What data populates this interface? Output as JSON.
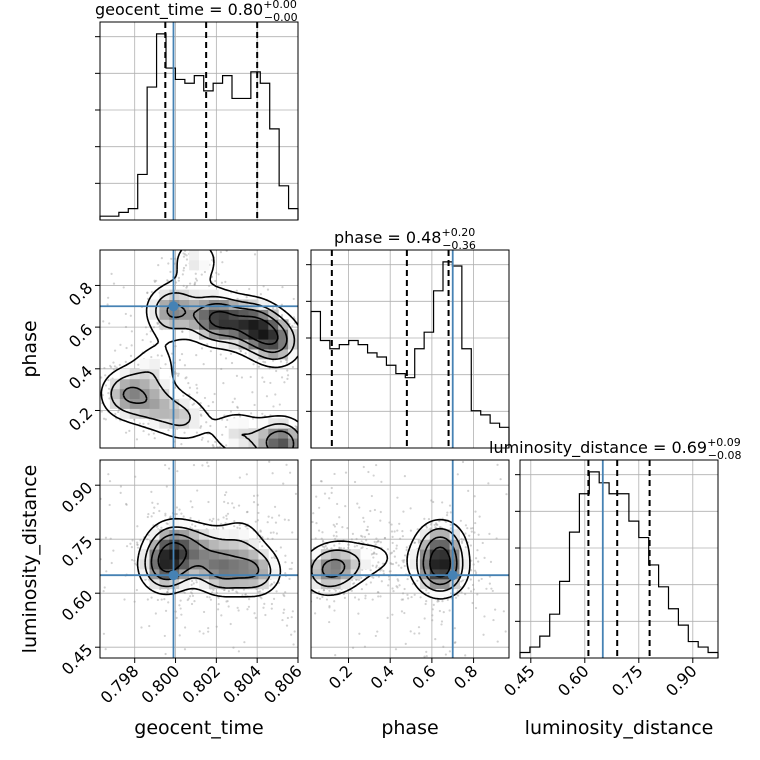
{
  "chart_data": {
    "type": "corner",
    "parameters": [
      {
        "name": "geocent_time",
        "label": "geocent_time",
        "range": [
          0.7963,
          0.806
        ],
        "ticks": [
          0.798,
          0.8,
          0.802,
          0.804,
          0.806
        ],
        "tick_labels": [
          "0.798",
          "0.800",
          "0.802",
          "0.804",
          "0.806"
        ],
        "truth": 0.7999,
        "quantiles": [
          0.7995,
          0.8015,
          0.804
        ],
        "summary": {
          "base": "geocent_time = 0.80",
          "plus": "+0.00",
          "minus": "−0.00"
        },
        "hist": [
          1,
          1,
          2,
          3,
          12,
          35,
          49,
          40,
          37,
          36,
          38,
          34,
          36,
          38,
          32,
          32,
          39,
          36,
          24,
          9,
          3
        ]
      },
      {
        "name": "phase",
        "label": "phase",
        "range": [
          0.02,
          0.97
        ],
        "ticks": [
          0.2,
          0.4,
          0.6,
          0.8
        ],
        "tick_labels": [
          "0.2",
          "0.4",
          "0.6",
          "0.8"
        ],
        "truth": 0.7,
        "quantiles": [
          0.12,
          0.48,
          0.68
        ],
        "summary": {
          "base": "phase = 0.48",
          "plus": "+0.20",
          "minus": "−0.36"
        },
        "hist": [
          33,
          26,
          24,
          25,
          26,
          25,
          23,
          22,
          20,
          18,
          17,
          24,
          28,
          38,
          45,
          44,
          24,
          9,
          8,
          6,
          5
        ]
      },
      {
        "name": "luminosity_distance",
        "label": "luminosity_distance",
        "range": [
          0.42,
          0.97
        ],
        "ticks": [
          0.45,
          0.6,
          0.75,
          0.9
        ],
        "tick_labels": [
          "0.45",
          "0.60",
          "0.75",
          "0.90"
        ],
        "truth": 0.65,
        "quantiles": [
          0.61,
          0.69,
          0.78
        ],
        "summary": {
          "base": "luminosity_distance = 0.69",
          "plus": "+0.09",
          "minus": "−0.08"
        },
        "hist": [
          1,
          2,
          4,
          8,
          14,
          23,
          30,
          34,
          32,
          30,
          30,
          25,
          22,
          17,
          13,
          9,
          6,
          3,
          2,
          1
        ]
      }
    ],
    "pairs": [
      {
        "x": "geocent_time",
        "y": "phase",
        "density_peaks": [
          {
            "x": 0.7975,
            "y": 0.28,
            "weight": 0.7
          },
          {
            "x": 0.799,
            "y": 0.22,
            "weight": 0.5
          },
          {
            "x": 0.8005,
            "y": 0.16,
            "weight": 0.5
          },
          {
            "x": 0.803,
            "y": 0.09,
            "weight": 0.5
          },
          {
            "x": 0.8052,
            "y": 0.04,
            "weight": 1.0
          },
          {
            "x": 0.799,
            "y": 0.42,
            "weight": 0.4
          },
          {
            "x": 0.7998,
            "y": 0.68,
            "weight": 0.8
          },
          {
            "x": 0.802,
            "y": 0.64,
            "weight": 1.0
          },
          {
            "x": 0.8038,
            "y": 0.61,
            "weight": 0.9
          },
          {
            "x": 0.805,
            "y": 0.53,
            "weight": 0.8
          },
          {
            "x": 0.801,
            "y": 0.92,
            "weight": 0.5
          }
        ]
      },
      {
        "x": "geocent_time",
        "y": "luminosity_distance",
        "density_peaks": [
          {
            "x": 0.7995,
            "y": 0.67,
            "weight": 1.0
          },
          {
            "x": 0.7998,
            "y": 0.74,
            "weight": 0.7
          },
          {
            "x": 0.8022,
            "y": 0.66,
            "weight": 0.8
          },
          {
            "x": 0.804,
            "y": 0.66,
            "weight": 0.8
          },
          {
            "x": 0.8012,
            "y": 0.73,
            "weight": 0.5
          },
          {
            "x": 0.8032,
            "y": 0.76,
            "weight": 0.4
          }
        ]
      },
      {
        "x": "phase",
        "y": "luminosity_distance",
        "density_peaks": [
          {
            "x": 0.64,
            "y": 0.66,
            "weight": 1.0
          },
          {
            "x": 0.64,
            "y": 0.74,
            "weight": 0.7
          },
          {
            "x": 0.08,
            "y": 0.66,
            "weight": 0.6
          },
          {
            "x": 0.18,
            "y": 0.68,
            "weight": 0.5
          },
          {
            "x": 0.35,
            "y": 0.7,
            "weight": 0.3
          }
        ]
      }
    ]
  }
}
